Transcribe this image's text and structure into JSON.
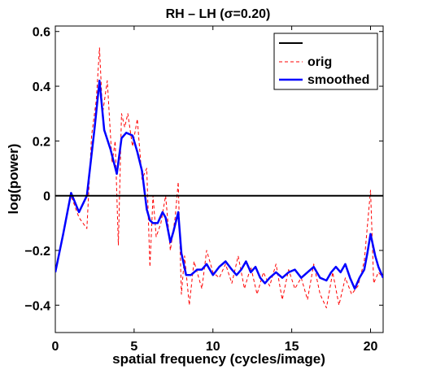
{
  "chart_data": {
    "type": "line",
    "title": "RH – LH (σ=0.20)",
    "xlabel": "spatial frequency (cycles/image)",
    "ylabel": "log(power)",
    "xlim": [
      0,
      20.8
    ],
    "ylim": [
      -0.5,
      0.62
    ],
    "xticks": [
      0,
      5,
      10,
      15,
      20
    ],
    "yticks": [
      -0.4,
      -0.2,
      0,
      0.2,
      0.4,
      0.6
    ],
    "ytick_labels": [
      "−0.4",
      "−0.2",
      "0",
      "0.2",
      "0.4",
      "0.6"
    ],
    "grid": false,
    "legend_position": "top-right",
    "legend": [
      "",
      "orig",
      "smoothed"
    ],
    "series": [
      {
        "name": "",
        "style": "solid",
        "color": "#000000",
        "x": [
          0,
          20.8
        ],
        "y": [
          0,
          0
        ]
      },
      {
        "name": "orig",
        "style": "dashed",
        "color": "#ff0000",
        "x": [
          0,
          1,
          1.5,
          2,
          2.3,
          2.6,
          2.8,
          3.0,
          3.3,
          3.6,
          3.8,
          4.0,
          4.2,
          4.4,
          4.6,
          4.9,
          5.2,
          5.5,
          5.8,
          6.0,
          6.2,
          6.4,
          6.7,
          7.0,
          7.3,
          7.6,
          7.8,
          8.0,
          8.2,
          8.5,
          8.8,
          9.0,
          9.3,
          9.6,
          10.0,
          10.4,
          10.8,
          11.2,
          11.6,
          12.0,
          12.4,
          12.8,
          13.2,
          13.6,
          14.0,
          14.4,
          14.8,
          15.2,
          15.6,
          16.0,
          16.4,
          16.8,
          17.2,
          17.6,
          18.0,
          18.4,
          18.8,
          19.2,
          19.6,
          20.0,
          20.2,
          20.5,
          20.8
        ],
        "y": [
          -0.28,
          0.0,
          -0.08,
          -0.12,
          0.22,
          0.35,
          0.54,
          0.3,
          0.42,
          0.12,
          0.2,
          -0.18,
          0.3,
          0.25,
          0.3,
          0.18,
          0.28,
          0.06,
          0.1,
          -0.26,
          0.0,
          -0.15,
          -0.1,
          0.0,
          -0.2,
          -0.08,
          0.05,
          -0.36,
          -0.22,
          -0.4,
          -0.24,
          -0.28,
          -0.34,
          -0.2,
          -0.28,
          -0.3,
          -0.25,
          -0.32,
          -0.22,
          -0.34,
          -0.26,
          -0.36,
          -0.28,
          -0.33,
          -0.25,
          -0.38,
          -0.27,
          -0.34,
          -0.3,
          -0.38,
          -0.25,
          -0.36,
          -0.41,
          -0.28,
          -0.4,
          -0.3,
          -0.36,
          -0.33,
          -0.24,
          0.02,
          -0.32,
          -0.28,
          -0.3
        ]
      },
      {
        "name": "smoothed",
        "style": "solid",
        "color": "#0000ff",
        "x": [
          0,
          0.5,
          1,
          1.5,
          2,
          2.5,
          2.8,
          3.1,
          3.5,
          3.9,
          4.2,
          4.5,
          4.9,
          5.2,
          5.5,
          5.8,
          6.0,
          6.2,
          6.5,
          6.8,
          7.0,
          7.3,
          7.5,
          7.8,
          8.0,
          8.3,
          8.6,
          9.0,
          9.3,
          9.6,
          10.0,
          10.4,
          10.8,
          11.2,
          11.5,
          11.8,
          12.1,
          12.4,
          12.7,
          13.0,
          13.3,
          13.6,
          14.0,
          14.4,
          14.8,
          15.2,
          15.6,
          16.0,
          16.4,
          16.8,
          17.2,
          17.5,
          17.8,
          18.1,
          18.4,
          18.7,
          19.0,
          19.3,
          19.6,
          19.8,
          20.0,
          20.3,
          20.5,
          20.8
        ],
        "y": [
          -0.28,
          -0.14,
          0.01,
          -0.06,
          0.0,
          0.25,
          0.42,
          0.24,
          0.17,
          0.08,
          0.21,
          0.23,
          0.22,
          0.16,
          0.09,
          -0.05,
          -0.09,
          -0.1,
          -0.1,
          -0.06,
          -0.08,
          -0.17,
          -0.13,
          -0.06,
          -0.21,
          -0.29,
          -0.29,
          -0.27,
          -0.27,
          -0.25,
          -0.29,
          -0.26,
          -0.24,
          -0.27,
          -0.29,
          -0.27,
          -0.24,
          -0.28,
          -0.26,
          -0.3,
          -0.32,
          -0.3,
          -0.28,
          -0.3,
          -0.28,
          -0.27,
          -0.3,
          -0.28,
          -0.26,
          -0.3,
          -0.31,
          -0.28,
          -0.26,
          -0.28,
          -0.25,
          -0.3,
          -0.34,
          -0.3,
          -0.27,
          -0.21,
          -0.14,
          -0.22,
          -0.26,
          -0.3
        ]
      }
    ]
  }
}
